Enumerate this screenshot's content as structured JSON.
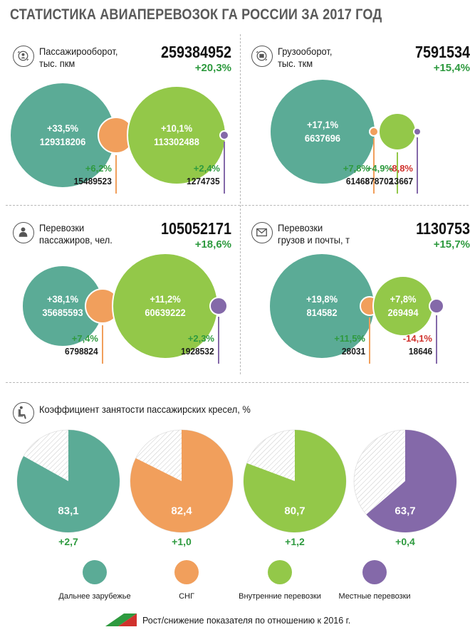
{
  "title": "СТАТИСТИКА АВИАПЕРЕВОЗОК ГА РОССИИ ЗА  2017 ГОД",
  "colors": {
    "far_abroad": "#5bab96",
    "cis": "#f19f5c",
    "domestic": "#93c849",
    "local": "#8469a9",
    "growth": "#2e9a3f",
    "decline": "#d0322d"
  },
  "chart_data": [
    {
      "type": "bubble",
      "id": "passenger_turnover",
      "label": "Пассажирооборот,\nтыс. пкм",
      "icon": "passenger-turnover-icon",
      "total": "259384952",
      "total_growth": "+20,3%",
      "series": [
        {
          "name": "Дальнее зарубежье",
          "value": "129318206",
          "value_num": 129318206,
          "change": "+33,5%"
        },
        {
          "name": "СНГ",
          "value": "15489523",
          "value_num": 15489523,
          "change": "+6,2%"
        },
        {
          "name": "Внутренние перевозки",
          "value": "113302488",
          "value_num": 113302488,
          "change": "+10,1%"
        },
        {
          "name": "Местные перевозки",
          "value": "1274735",
          "value_num": 1274735,
          "change": "+2,4%"
        }
      ]
    },
    {
      "type": "bubble",
      "id": "cargo_turnover",
      "label": "Грузооборот,\nтыс. ткм",
      "icon": "cargo-turnover-icon",
      "total": "7591534",
      "total_growth": "+15,4%",
      "series": [
        {
          "name": "Дальнее зарубежье",
          "value": "6637696",
          "value_num": 6637696,
          "change": "+17,1%"
        },
        {
          "name": "СНГ",
          "value": "61468",
          "value_num": 61468,
          "change": "+7,8%"
        },
        {
          "name": "Внутренние перевозки",
          "value": "878702",
          "value_num": 878702,
          "change": "+4,9%"
        },
        {
          "name": "Местные перевозки",
          "value": "13667",
          "value_num": 13667,
          "change": "-8,8%"
        }
      ]
    },
    {
      "type": "bubble",
      "id": "passengers",
      "label": "Перевозки\nпассажиров, чел.",
      "icon": "passenger-icon",
      "total": "105052171",
      "total_growth": "+18,6%",
      "series": [
        {
          "name": "Дальнее зарубежье",
          "value": "35685593",
          "value_num": 35685593,
          "change": "+38,1%"
        },
        {
          "name": "СНГ",
          "value": "6798824",
          "value_num": 6798824,
          "change": "+7,4%"
        },
        {
          "name": "Внутренние перевозки",
          "value": "60639222",
          "value_num": 60639222,
          "change": "+11,2%"
        },
        {
          "name": "Местные перевозки",
          "value": "1928532",
          "value_num": 1928532,
          "change": "+2,3%"
        }
      ]
    },
    {
      "type": "bubble",
      "id": "cargo_mail",
      "label": "Перевозки\nгрузов и почты, т",
      "icon": "mail-icon",
      "total": "1130753",
      "total_growth": "+15,7%",
      "series": [
        {
          "name": "Дальнее зарубежье",
          "value": "814582",
          "value_num": 814582,
          "change": "+19,8%"
        },
        {
          "name": "СНГ",
          "value": "28031",
          "value_num": 28031,
          "change": "+11,5%"
        },
        {
          "name": "Внутренние перевозки",
          "value": "269494",
          "value_num": 269494,
          "change": "+7,8%"
        },
        {
          "name": "Местные перевозки",
          "value": "18646",
          "value_num": 18646,
          "change": "-14,1%"
        }
      ]
    },
    {
      "type": "pie",
      "id": "seat_load_factor",
      "label": "Коэффициент занятости пассажирских кресел, %",
      "icon": "seat-icon",
      "series": [
        {
          "name": "Дальнее зарубежье",
          "value": "83,1",
          "value_num": 83.1,
          "change": "+2,7"
        },
        {
          "name": "СНГ",
          "value": "82,4",
          "value_num": 82.4,
          "change": "+1,0"
        },
        {
          "name": "Внутренние перевозки",
          "value": "80,7",
          "value_num": 80.7,
          "change": "+1,2"
        },
        {
          "name": "Местные перевозки",
          "value": "63,7",
          "value_num": 63.7,
          "change": "+0,4"
        }
      ]
    }
  ],
  "legend": [
    "Дальнее зарубежье",
    "СНГ",
    "Внутренние перевозки",
    "Местные перевозки"
  ],
  "footnote": "Рост/снижение показателя по отношению к 2016 г."
}
